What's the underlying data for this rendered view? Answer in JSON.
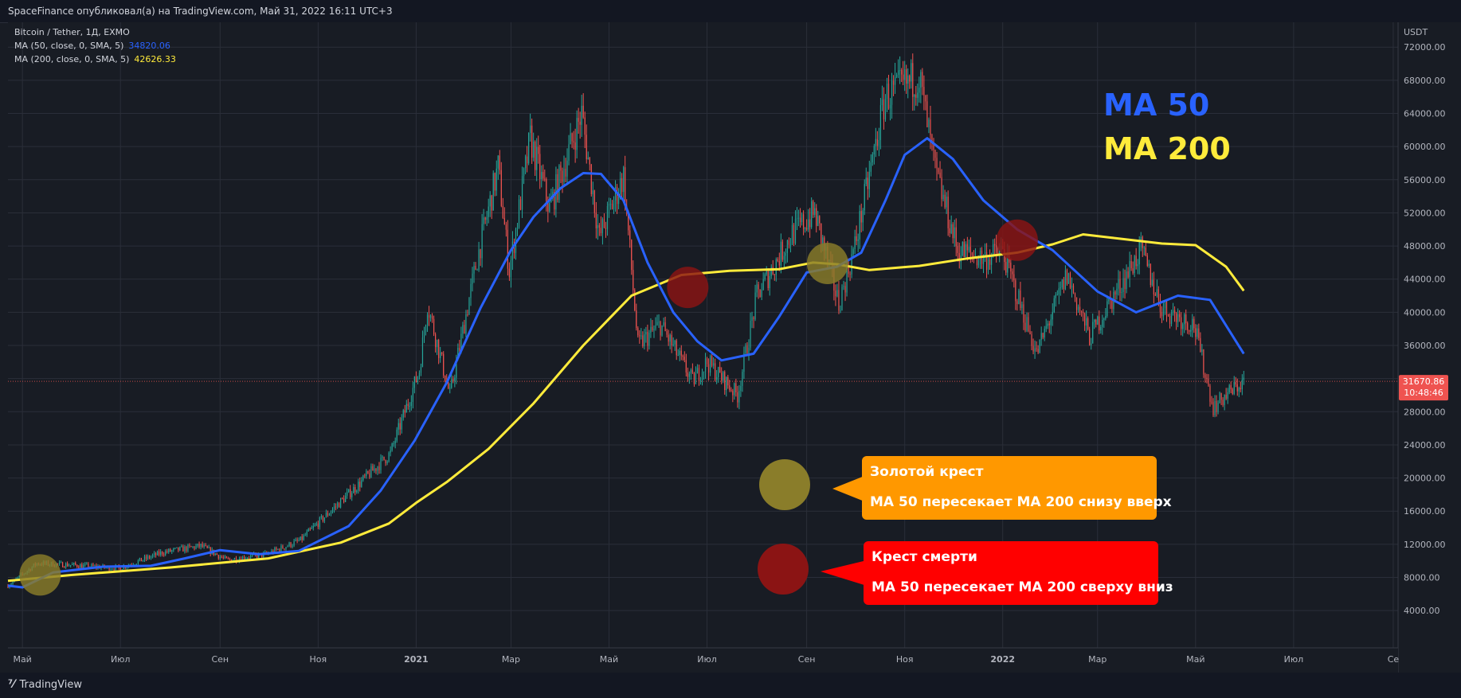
{
  "header": {
    "published": "SpaceFinance опубликовал(а) на TradingView.com, Май 31, 2022 16:11 UTC+3"
  },
  "legend": {
    "symbol": "Bitcoin / Tether, 1Д, EXMO",
    "ma50_label": "MA (50, close, 0, SMA, 5)",
    "ma50_value": "34820.06",
    "ma200_label": "MA (200, close, 0, SMA, 5)",
    "ma200_value": "42626.33"
  },
  "annotations": {
    "ma50_title": "MA 50",
    "ma200_title": "MA 200",
    "golden_title": "Золотой крест",
    "golden_desc": "MA 50 пересекает MA 200 снизу вверх",
    "death_title": "Крест смерти",
    "death_desc": "MA 50 пересекает MA 200 сверху вниз"
  },
  "price_tag": {
    "price": "31670.86",
    "countdown": "10:48:46"
  },
  "footer": {
    "brand": "TradingView"
  },
  "colors": {
    "background": "#181c24",
    "ma50": "#2962ff",
    "ma200": "#ffeb3b",
    "up": "#26a69a",
    "down": "#ef5350",
    "golden_callout": "#ff9800",
    "death_callout": "#ff0000",
    "golden_circle": "#8a7d2a",
    "death_circle": "#8b1414"
  },
  "chart_data": {
    "type": "line",
    "title": "",
    "symbol": "Bitcoin / Tether",
    "currency": "USDT",
    "y_ticks": [
      4000,
      8000,
      12000,
      16000,
      20000,
      24000,
      28000,
      32000,
      36000,
      40000,
      44000,
      48000,
      52000,
      56000,
      60000,
      64000,
      68000,
      72000
    ],
    "y_tick_labels": [
      "4000.00",
      "8000.00",
      "12000.00",
      "16000.00",
      "20000.00",
      "24000.00",
      "28000.00",
      "",
      "36000.00",
      "40000.00",
      "44000.00",
      "48000.00",
      "52000.00",
      "56000.00",
      "60000.00",
      "64000.00",
      "68000.00",
      "72000.00"
    ],
    "ylim": [
      -500,
      75000
    ],
    "x_ticks": [
      "2020-05-01",
      "2020-07-01",
      "2020-09-01",
      "2020-11-01",
      "2021-01-01",
      "2021-03-01",
      "2021-05-01",
      "2021-07-01",
      "2021-09-01",
      "2021-11-01",
      "2022-01-01",
      "2022-03-01",
      "2022-05-01",
      "2022-07-01",
      "2022-09-01"
    ],
    "x_tick_labels": [
      "Май",
      "Июл",
      "Сен",
      "Ноя",
      "2021",
      "Мар",
      "Май",
      "Июл",
      "Сен",
      "Ноя",
      "2022",
      "Мар",
      "Май",
      "Июл",
      "Се"
    ],
    "xlim": [
      "2020-04-22",
      "2022-09-04"
    ],
    "grid": true,
    "last_price": 31670.86,
    "price_series": {
      "name": "Bitcoin / Tether",
      "x": [
        "2020-04-22",
        "2020-05-10",
        "2020-06-01",
        "2020-06-30",
        "2020-07-27",
        "2020-08-20",
        "2020-09-05",
        "2020-09-30",
        "2020-10-21",
        "2020-11-06",
        "2020-11-25",
        "2020-12-16",
        "2021-01-03",
        "2021-01-08",
        "2021-01-22",
        "2021-02-08",
        "2021-02-21",
        "2021-02-28",
        "2021-03-13",
        "2021-03-25",
        "2021-04-14",
        "2021-04-25",
        "2021-05-10",
        "2021-05-19",
        "2021-06-02",
        "2021-06-22",
        "2021-07-01",
        "2021-07-20",
        "2021-08-01",
        "2021-08-23",
        "2021-09-06",
        "2021-09-21",
        "2021-10-01",
        "2021-10-20",
        "2021-11-10",
        "2021-11-20",
        "2021-12-04",
        "2021-12-20",
        "2022-01-01",
        "2022-01-22",
        "2022-02-10",
        "2022-02-24",
        "2022-03-28",
        "2022-04-10",
        "2022-04-30",
        "2022-05-12",
        "2022-05-20",
        "2022-05-31"
      ],
      "values": [
        7000,
        9700,
        9500,
        9100,
        11000,
        11800,
        10100,
        10800,
        12500,
        15500,
        19000,
        23000,
        33000,
        41000,
        30000,
        46500,
        57500,
        45000,
        61000,
        52500,
        64000,
        49000,
        56500,
        36000,
        38500,
        31700,
        34000,
        30000,
        42000,
        49500,
        52000,
        41000,
        48000,
        66000,
        68500,
        57000,
        47500,
        46500,
        47300,
        35000,
        44500,
        37000,
        47500,
        40500,
        38500,
        28500,
        30000,
        31670
      ]
    },
    "series": [
      {
        "name": "MA (50, close, 0, SMA, 5)",
        "x": [
          "2020-04-22",
          "2020-05-01",
          "2020-05-20",
          "2020-06-20",
          "2020-07-20",
          "2020-08-10",
          "2020-09-01",
          "2020-09-25",
          "2020-10-20",
          "2020-11-20",
          "2020-12-10",
          "2020-12-31",
          "2021-01-20",
          "2021-02-10",
          "2021-03-01",
          "2021-03-15",
          "2021-04-01",
          "2021-04-15",
          "2021-04-26",
          "2021-05-10",
          "2021-05-25",
          "2021-06-10",
          "2021-06-25",
          "2021-07-10",
          "2021-07-30",
          "2021-08-15",
          "2021-09-01",
          "2021-09-20",
          "2021-10-05",
          "2021-10-20",
          "2021-11-01",
          "2021-11-15",
          "2021-12-01",
          "2021-12-20",
          "2022-01-10",
          "2022-02-01",
          "2022-03-01",
          "2022-03-25",
          "2022-04-20",
          "2022-05-10",
          "2022-05-31"
        ],
        "values": [
          7000,
          6800,
          8600,
          9300,
          9400,
          10300,
          11300,
          10800,
          11200,
          14200,
          18500,
          24500,
          31500,
          40500,
          47500,
          51500,
          55000,
          56800,
          56700,
          53500,
          46000,
          40000,
          36500,
          34200,
          35000,
          39500,
          44800,
          45500,
          47200,
          53500,
          59000,
          61000,
          58500,
          53500,
          50000,
          47500,
          42500,
          40000,
          42000,
          41500,
          35000
        ]
      },
      {
        "name": "MA (200, close, 0, SMA, 5)",
        "x": [
          "2020-04-22",
          "2020-06-01",
          "2020-08-01",
          "2020-10-01",
          "2020-11-15",
          "2020-12-15",
          "2021-01-01",
          "2021-01-20",
          "2021-02-15",
          "2021-03-15",
          "2021-04-15",
          "2021-05-15",
          "2021-06-15",
          "2021-07-15",
          "2021-08-15",
          "2021-09-05",
          "2021-09-20",
          "2021-10-10",
          "2021-11-10",
          "2021-12-10",
          "2022-01-10",
          "2022-02-01",
          "2022-02-20",
          "2022-03-10",
          "2022-04-10",
          "2022-05-01",
          "2022-05-20",
          "2022-05-31"
        ],
        "values": [
          7600,
          8300,
          9200,
          10300,
          12200,
          14500,
          17000,
          19500,
          23500,
          29000,
          36000,
          42000,
          44500,
          45000,
          45200,
          46000,
          45800,
          45100,
          45600,
          46500,
          47200,
          48200,
          49400,
          49000,
          48300,
          48100,
          45500,
          42600
        ]
      }
    ]
  }
}
